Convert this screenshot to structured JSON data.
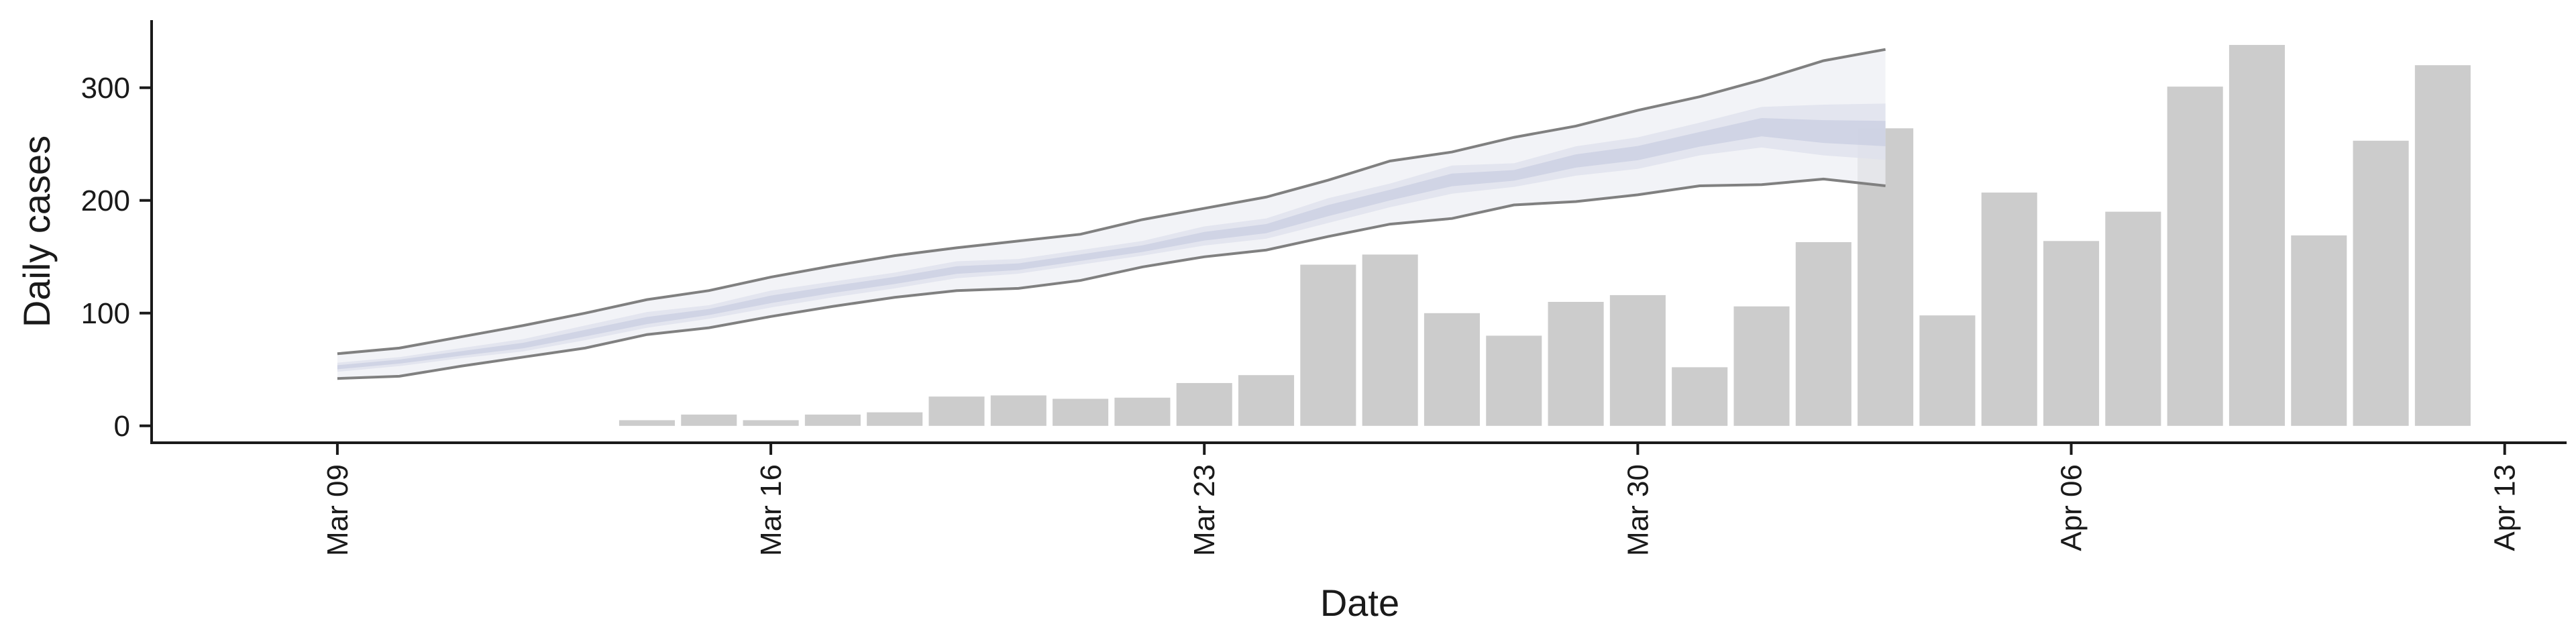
{
  "chart_data": {
    "type": "bar",
    "xlabel": "Date",
    "ylabel": "Daily cases",
    "ylim": [
      -15,
      360
    ],
    "y_ticks": [
      0,
      100,
      200,
      300
    ],
    "x_ticks": [
      {
        "date": "2020-03-09",
        "label": "Mar 09"
      },
      {
        "date": "2020-03-16",
        "label": "Mar 16"
      },
      {
        "date": "2020-03-23",
        "label": "Mar 23"
      },
      {
        "date": "2020-03-30",
        "label": "Mar 30"
      },
      {
        "date": "2020-04-06",
        "label": "Apr 06"
      },
      {
        "date": "2020-04-13",
        "label": "Apr 13"
      }
    ],
    "xlim": [
      "2020-03-06",
      "2020-04-14"
    ],
    "grid": false,
    "bars": {
      "dates": [
        "2020-03-14",
        "2020-03-15",
        "2020-03-16",
        "2020-03-17",
        "2020-03-18",
        "2020-03-19",
        "2020-03-20",
        "2020-03-21",
        "2020-03-22",
        "2020-03-23",
        "2020-03-24",
        "2020-03-25",
        "2020-03-26",
        "2020-03-27",
        "2020-03-28",
        "2020-03-29",
        "2020-03-30",
        "2020-03-31",
        "2020-04-01",
        "2020-04-02",
        "2020-04-03",
        "2020-04-04",
        "2020-04-05",
        "2020-04-06",
        "2020-04-07",
        "2020-04-08",
        "2020-04-09",
        "2020-04-10",
        "2020-04-11",
        "2020-04-12"
      ],
      "values": [
        5,
        10,
        5,
        10,
        12,
        26,
        27,
        24,
        25,
        38,
        45,
        143,
        152,
        100,
        80,
        110,
        116,
        52,
        106,
        163,
        264,
        98,
        207,
        164,
        190,
        301,
        338,
        169,
        253,
        320
      ]
    },
    "forecast": {
      "dates": [
        "2020-03-09",
        "2020-03-10",
        "2020-03-11",
        "2020-03-12",
        "2020-03-13",
        "2020-03-14",
        "2020-03-15",
        "2020-03-16",
        "2020-03-17",
        "2020-03-18",
        "2020-03-19",
        "2020-03-20",
        "2020-03-21",
        "2020-03-22",
        "2020-03-23",
        "2020-03-24",
        "2020-03-25",
        "2020-03-26",
        "2020-03-27",
        "2020-03-28",
        "2020-03-29",
        "2020-03-30",
        "2020-03-31",
        "2020-04-01",
        "2020-04-02",
        "2020-04-03"
      ],
      "upper": [
        64,
        69,
        79,
        89,
        100,
        112,
        120,
        132,
        142,
        151,
        158,
        164,
        170,
        183,
        193,
        203,
        218,
        235,
        243,
        256,
        266,
        280,
        292,
        307,
        324,
        334
      ],
      "upper_inner": [
        56,
        61,
        69,
        77,
        89,
        101,
        107,
        120,
        128,
        136,
        146,
        148,
        156,
        164,
        177,
        184,
        202,
        215,
        231,
        233,
        248,
        256,
        269,
        283,
        285,
        286
      ],
      "median": [
        52,
        57,
        64,
        71,
        82,
        93,
        101,
        112,
        121,
        129,
        138,
        141,
        149,
        157,
        168,
        175,
        191,
        205,
        218,
        222,
        235,
        242,
        254,
        265,
        260,
        258
      ],
      "lower_inner": [
        48,
        53,
        60,
        66,
        76,
        87,
        95,
        105,
        114,
        122,
        131,
        135,
        143,
        151,
        160,
        166,
        180,
        194,
        206,
        212,
        222,
        228,
        240,
        247,
        240,
        236
      ],
      "lower": [
        42,
        44,
        53,
        61,
        69,
        81,
        87,
        97,
        106,
        114,
        120,
        122,
        129,
        141,
        150,
        156,
        168,
        179,
        184,
        196,
        199,
        205,
        213,
        214,
        219,
        213
      ]
    },
    "colors": {
      "bar": "#cccccc",
      "outer_band": "#eeeff4",
      "mid_band": "#dfe1ec",
      "inner_band": "#cdd1e3",
      "bound_line": "#808080",
      "axis": "#1a1a1a"
    }
  }
}
